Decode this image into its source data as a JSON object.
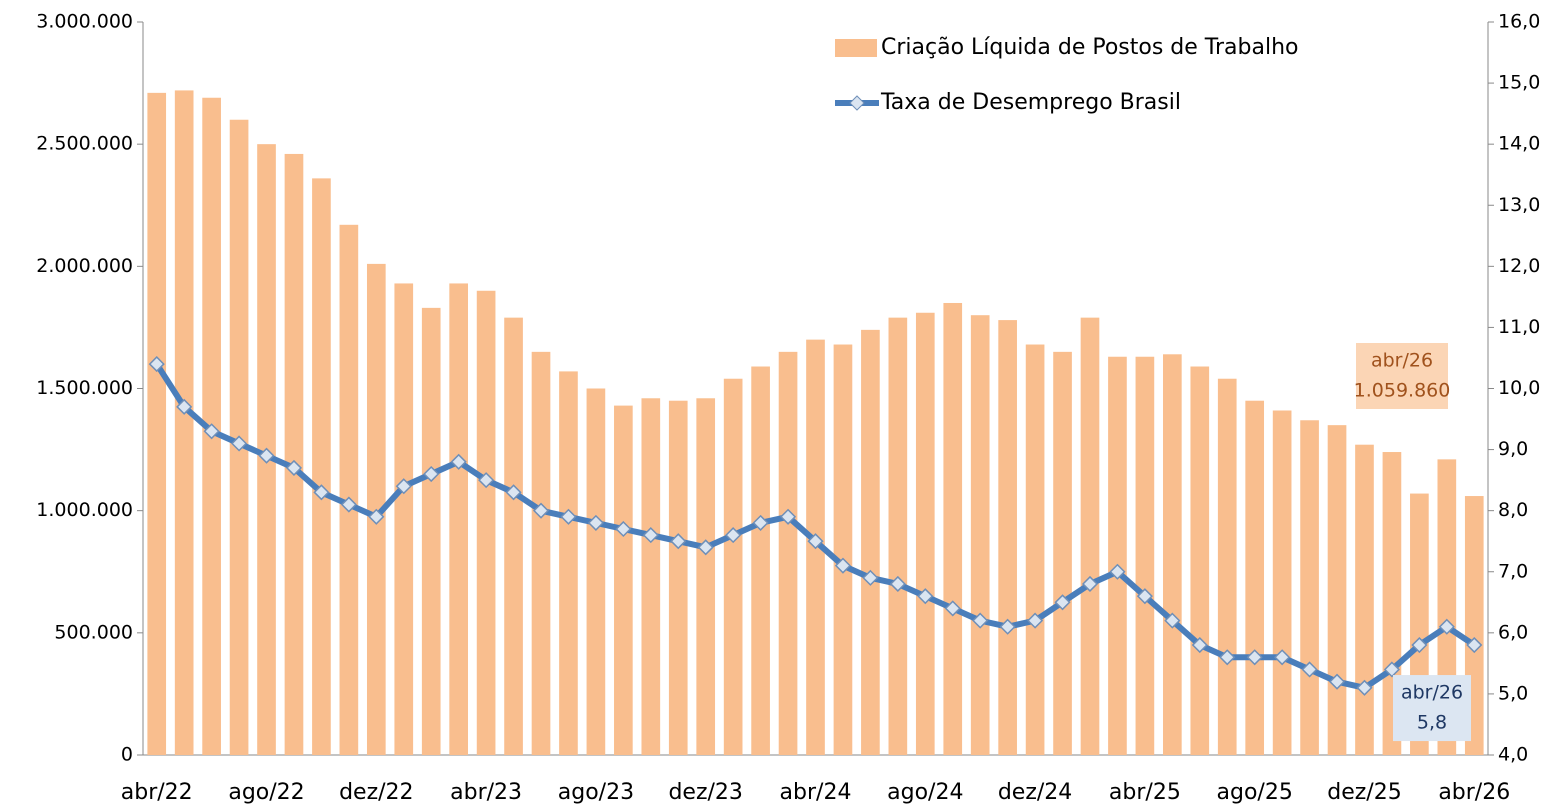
{
  "chart_data": {
    "type": "bar_line",
    "categories": [
      "abr/22",
      null,
      null,
      null,
      "ago/22",
      null,
      null,
      null,
      "dez/22",
      null,
      null,
      null,
      "abr/23",
      null,
      null,
      null,
      "ago/23",
      null,
      null,
      null,
      "dez/23",
      null,
      null,
      null,
      "abr/24",
      null,
      null,
      null,
      "ago/24",
      null,
      null,
      null,
      "dez/24",
      null,
      null,
      null,
      "abr/25",
      null,
      null,
      null,
      "ago/25",
      null,
      null,
      null,
      "dez/25",
      null,
      null,
      null,
      "abr/26"
    ],
    "series": [
      {
        "name": "Criação Líquida de Postos de Trabalho",
        "type": "bar",
        "color": "#f9be8e",
        "values": [
          2710000,
          2720000,
          2690000,
          2600000,
          2500000,
          2460000,
          2360000,
          2170000,
          2010000,
          1930000,
          1830000,
          1930000,
          1900000,
          1790000,
          1650000,
          1570000,
          1500000,
          1430000,
          1460000,
          1450000,
          1460000,
          1540000,
          1590000,
          1650000,
          1700000,
          1680000,
          1740000,
          1790000,
          1810000,
          1850000,
          1800000,
          1780000,
          1680000,
          1650000,
          1790000,
          1630000,
          1630000,
          1640000,
          1590000,
          1540000,
          1450000,
          1410000,
          1370000,
          1350000,
          1270000,
          1240000,
          1070000,
          1210000,
          1059860
        ]
      },
      {
        "name": "Taxa de Desemprego Brasil",
        "type": "line",
        "axis": "y2",
        "color": "#4a7ebb",
        "values": [
          10.4,
          9.7,
          9.3,
          9.1,
          8.9,
          8.7,
          8.3,
          8.1,
          7.9,
          8.4,
          8.6,
          8.8,
          8.5,
          8.3,
          8.0,
          7.9,
          7.8,
          7.7,
          7.6,
          7.5,
          7.4,
          7.6,
          7.8,
          7.9,
          7.5,
          7.1,
          6.9,
          6.8,
          6.6,
          6.4,
          6.2,
          6.1,
          6.2,
          6.5,
          6.8,
          7.0,
          6.6,
          6.2,
          5.8,
          5.6,
          5.6,
          5.6,
          5.4,
          5.2,
          5.1,
          5.4,
          5.8,
          6.1,
          5.8
        ]
      }
    ],
    "ylim": [
      0,
      3000000
    ],
    "yticks": [
      0,
      {
        "value": 500000,
        "label": "500.000"
      },
      {
        "value": 1000000,
        "label": "1.000.000"
      },
      {
        "value": 1500000,
        "label": "1.500.000"
      },
      {
        "value": 2000000,
        "label": "2.000.000"
      },
      {
        "value": 2500000,
        "label": "2.500.000"
      },
      {
        "value": 3000000,
        "label": "3.000.000"
      }
    ],
    "y2lim": [
      4,
      16
    ],
    "y2ticks": [
      {
        "value": 4,
        "label": "4,0"
      },
      {
        "value": 5,
        "label": "5,0"
      },
      {
        "value": 6,
        "label": "6,0"
      },
      {
        "value": 7,
        "label": "7,0"
      },
      {
        "value": 8,
        "label": "8,0"
      },
      {
        "value": 9,
        "label": "9,0"
      },
      {
        "value": 10,
        "label": "10,0"
      },
      {
        "value": 11,
        "label": "11,0"
      },
      {
        "value": 12,
        "label": "12,0"
      },
      {
        "value": 13,
        "label": "13,0"
      },
      {
        "value": 14,
        "label": "14,0"
      },
      {
        "value": 15,
        "label": "15,0"
      },
      {
        "value": 16,
        "label": "16,0"
      }
    ],
    "legend": "top-right",
    "annotations": [
      {
        "text": [
          "abr/26",
          "1.059.860"
        ],
        "series": 0,
        "background": "#fbd5b5",
        "color": "#a0521d"
      },
      {
        "text": [
          "abr/26",
          "5,8"
        ],
        "series": 1,
        "background": "#dce6f2",
        "color": "#1f3864"
      }
    ]
  }
}
